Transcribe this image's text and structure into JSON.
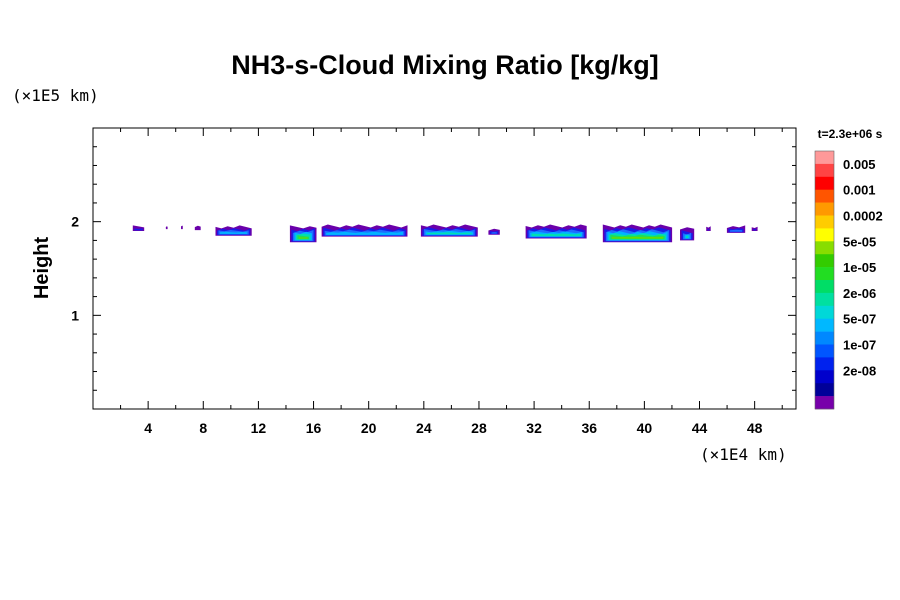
{
  "chart_data": {
    "type": "heatmap",
    "title": "NH3-s-Cloud Mixing Ratio [kg/kg]",
    "ylabel": "Height",
    "xlabel": "",
    "x_unit": "(×1E4 km)",
    "y_unit": "(×1E5 km)",
    "xlim": [
      0,
      51
    ],
    "ylim": [
      0,
      3
    ],
    "x_ticks": [
      4,
      8,
      12,
      16,
      20,
      24,
      28,
      32,
      36,
      40,
      44,
      48
    ],
    "y_ticks": [
      1,
      2
    ],
    "colorbar_title": "t=2.3e+06 s",
    "colorbar": [
      {
        "label": "",
        "color": "#ff9999"
      },
      {
        "label": "0.005",
        "color": "#ff4444"
      },
      {
        "label": "",
        "color": "#ff0000"
      },
      {
        "label": "0.001",
        "color": "#ff5500"
      },
      {
        "label": "",
        "color": "#ff9900"
      },
      {
        "label": "0.0002",
        "color": "#ffcc00"
      },
      {
        "label": "",
        "color": "#ffff00"
      },
      {
        "label": "5e-05",
        "color": "#88dd00"
      },
      {
        "label": "",
        "color": "#33cc00"
      },
      {
        "label": "1e-05",
        "color": "#22dd22"
      },
      {
        "label": "",
        "color": "#00dd66"
      },
      {
        "label": "2e-06",
        "color": "#00e0a0"
      },
      {
        "label": "",
        "color": "#00d8d8"
      },
      {
        "label": "5e-07",
        "color": "#00b8ff"
      },
      {
        "label": "",
        "color": "#0088ff"
      },
      {
        "label": "1e-07",
        "color": "#0055ff"
      },
      {
        "label": "",
        "color": "#0022ee"
      },
      {
        "label": "2e-08",
        "color": "#0000cc"
      },
      {
        "label": "",
        "color": "#000099"
      },
      {
        "label": "",
        "color": "#7700aa"
      }
    ],
    "cloud_patches": [
      {
        "x0": 2.8,
        "x1": 3.8,
        "ytop": 1.96,
        "ybot": 1.9,
        "max_level": 1
      },
      {
        "x0": 5.2,
        "x1": 5.5,
        "ytop": 1.95,
        "ybot": 1.92,
        "max_level": 0
      },
      {
        "x0": 6.3,
        "x1": 6.6,
        "ytop": 1.96,
        "ybot": 1.92,
        "max_level": 0
      },
      {
        "x0": 7.3,
        "x1": 7.9,
        "ytop": 1.96,
        "ybot": 1.91,
        "max_level": 0
      },
      {
        "x0": 8.8,
        "x1": 11.6,
        "ytop": 1.96,
        "ybot": 1.85,
        "max_level": 3
      },
      {
        "x0": 14.2,
        "x1": 16.3,
        "ytop": 1.96,
        "ybot": 1.78,
        "max_level": 6
      },
      {
        "x0": 16.5,
        "x1": 22.9,
        "ytop": 1.97,
        "ybot": 1.84,
        "max_level": 3
      },
      {
        "x0": 23.7,
        "x1": 28.0,
        "ytop": 1.97,
        "ybot": 1.84,
        "max_level": 4
      },
      {
        "x0": 28.6,
        "x1": 29.6,
        "ytop": 1.93,
        "ybot": 1.86,
        "max_level": 2
      },
      {
        "x0": 31.3,
        "x1": 35.9,
        "ytop": 1.97,
        "ybot": 1.82,
        "max_level": 4
      },
      {
        "x0": 36.9,
        "x1": 42.1,
        "ytop": 1.97,
        "ybot": 1.78,
        "max_level": 6
      },
      {
        "x0": 42.5,
        "x1": 43.7,
        "ytop": 1.94,
        "ybot": 1.8,
        "max_level": 4
      },
      {
        "x0": 44.4,
        "x1": 44.9,
        "ytop": 1.95,
        "ybot": 1.9,
        "max_level": 1
      },
      {
        "x0": 45.9,
        "x1": 47.4,
        "ytop": 1.96,
        "ybot": 1.88,
        "max_level": 2
      },
      {
        "x0": 47.7,
        "x1": 48.3,
        "ytop": 1.95,
        "ybot": 1.9,
        "max_level": 1
      }
    ]
  }
}
